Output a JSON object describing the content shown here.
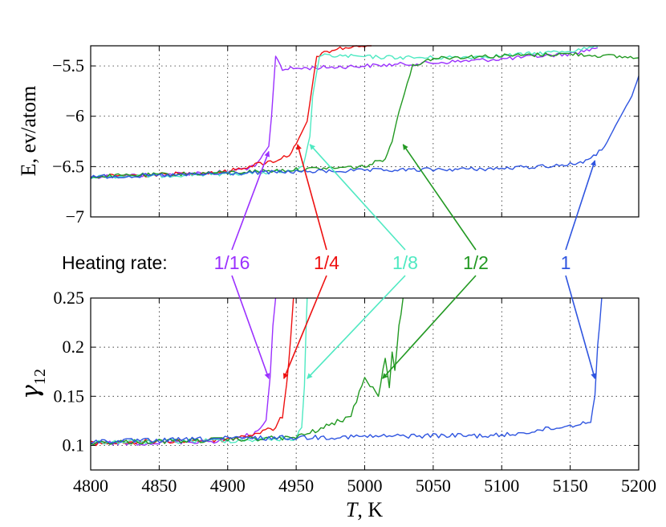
{
  "colors": {
    "purple": "#9b30ff",
    "red": "#ee1111",
    "cyan": "#4fe9c2",
    "green": "#229922",
    "blue": "#2f55e0"
  },
  "chart_data": [
    {
      "type": "line",
      "panel": "top",
      "ylabel": "E, ev/atom",
      "xlabel": "",
      "xlim": [
        4800,
        5200
      ],
      "ylim": [
        -7,
        -5.3
      ],
      "xticks": [
        4800,
        4850,
        4900,
        4950,
        5000,
        5050,
        5100,
        5150,
        5200
      ],
      "yticks": [
        -7,
        -6.5,
        -6,
        -5.5
      ],
      "ytick_labels": [
        "−7",
        "−6.5",
        "−6",
        "−5.5"
      ],
      "grid": true,
      "series": [
        {
          "name": "1/16",
          "color": "purple",
          "x": [
            4800,
            4850,
            4900,
            4920,
            4930,
            4932,
            4935,
            4940,
            4960,
            5000,
            5050,
            5100,
            5150,
            5170
          ],
          "y": [
            -6.6,
            -6.58,
            -6.55,
            -6.5,
            -6.3,
            -6.0,
            -5.4,
            -5.53,
            -5.52,
            -5.5,
            -5.47,
            -5.43,
            -5.38,
            -5.32
          ]
        },
        {
          "name": "1/4",
          "color": "red",
          "x": [
            4800,
            4850,
            4900,
            4920,
            4935,
            4945,
            4950,
            4958,
            4965,
            4980,
            5000,
            5005
          ],
          "y": [
            -6.6,
            -6.58,
            -6.55,
            -6.48,
            -6.44,
            -6.38,
            -6.28,
            -6.05,
            -5.4,
            -5.33,
            -5.3,
            -5.29
          ]
        },
        {
          "name": "1/8",
          "color": "cyan",
          "x": [
            4800,
            4850,
            4900,
            4950,
            4955,
            4960,
            4962,
            4967,
            4980,
            5000,
            5050,
            5100,
            5150,
            5170
          ],
          "y": [
            -6.6,
            -6.59,
            -6.57,
            -6.55,
            -6.5,
            -6.2,
            -5.8,
            -5.4,
            -5.4,
            -5.41,
            -5.42,
            -5.4,
            -5.35,
            -5.31
          ]
        },
        {
          "name": "1/2",
          "color": "green",
          "x": [
            4800,
            4850,
            4900,
            4950,
            5000,
            5015,
            5020,
            5025,
            5035,
            5050,
            5100,
            5150,
            5200
          ],
          "y": [
            -6.6,
            -6.58,
            -6.56,
            -6.53,
            -6.5,
            -6.42,
            -6.25,
            -5.95,
            -5.5,
            -5.42,
            -5.4,
            -5.38,
            -5.42
          ]
        },
        {
          "name": "1",
          "color": "blue",
          "x": [
            4800,
            4850,
            4900,
            4950,
            5000,
            5050,
            5100,
            5150,
            5165,
            5175,
            5185,
            5195,
            5200
          ],
          "y": [
            -6.6,
            -6.59,
            -6.57,
            -6.55,
            -6.54,
            -6.53,
            -6.52,
            -6.48,
            -6.43,
            -6.3,
            -6.05,
            -5.8,
            -5.6
          ]
        }
      ]
    },
    {
      "type": "line",
      "panel": "bottom",
      "ylabel": "γ12",
      "xlabel": "T, K",
      "xlim": [
        4800,
        5200
      ],
      "ylim": [
        0.075,
        0.25
      ],
      "xticks": [
        4800,
        4850,
        4900,
        4950,
        5000,
        5050,
        5100,
        5150,
        5200
      ],
      "yticks": [
        0.1,
        0.15,
        0.2,
        0.25
      ],
      "ytick_labels": [
        "0.1",
        "0.15",
        "0.2",
        "0.25"
      ],
      "grid": true,
      "series": [
        {
          "name": "1/16",
          "color": "purple",
          "x": [
            4800,
            4850,
            4900,
            4920,
            4928,
            4931,
            4933,
            4935
          ],
          "y": [
            0.102,
            0.103,
            0.105,
            0.112,
            0.125,
            0.17,
            0.22,
            0.25
          ]
        },
        {
          "name": "1/4",
          "color": "red",
          "x": [
            4800,
            4850,
            4900,
            4920,
            4935,
            4940,
            4943,
            4946,
            4948
          ],
          "y": [
            0.102,
            0.104,
            0.106,
            0.112,
            0.118,
            0.13,
            0.16,
            0.21,
            0.25
          ]
        },
        {
          "name": "1/8",
          "color": "cyan",
          "x": [
            4800,
            4850,
            4900,
            4950,
            4954,
            4956,
            4957,
            4958
          ],
          "y": [
            0.103,
            0.104,
            0.105,
            0.107,
            0.118,
            0.16,
            0.21,
            0.25
          ]
        },
        {
          "name": "1/2",
          "color": "green",
          "x": [
            4800,
            4850,
            4900,
            4950,
            4970,
            4990,
            5000,
            5010,
            5015,
            5018,
            5020,
            5022,
            5025,
            5028
          ],
          "y": [
            0.103,
            0.104,
            0.106,
            0.108,
            0.118,
            0.13,
            0.17,
            0.15,
            0.19,
            0.16,
            0.195,
            0.175,
            0.22,
            0.25
          ]
        },
        {
          "name": "1",
          "color": "blue",
          "x": [
            4800,
            4850,
            4900,
            4950,
            5000,
            5050,
            5100,
            5150,
            5165,
            5168,
            5170,
            5173
          ],
          "y": [
            0.104,
            0.105,
            0.107,
            0.108,
            0.109,
            0.11,
            0.11,
            0.12,
            0.125,
            0.15,
            0.2,
            0.25
          ]
        }
      ]
    }
  ],
  "annotation": {
    "heading": "Heating rate:",
    "labels": [
      {
        "text": "1/16",
        "color": "purple",
        "top_target": [
          4930,
          -6.35
        ],
        "bottom_target": [
          4930,
          0.168
        ]
      },
      {
        "text": "1/4",
        "color": "red",
        "top_target": [
          4951,
          -6.28
        ],
        "bottom_target": [
          4941,
          0.168
        ]
      },
      {
        "text": "1/8",
        "color": "cyan",
        "top_target": [
          4960,
          -6.28
        ],
        "bottom_target": [
          4958,
          0.168
        ]
      },
      {
        "text": "1/2",
        "color": "green",
        "top_target": [
          5028,
          -6.28
        ],
        "bottom_target": [
          5013,
          0.168
        ]
      },
      {
        "text": "1",
        "color": "blue",
        "top_target": [
          5168,
          -6.44
        ],
        "bottom_target": [
          5168,
          0.168
        ]
      }
    ]
  }
}
